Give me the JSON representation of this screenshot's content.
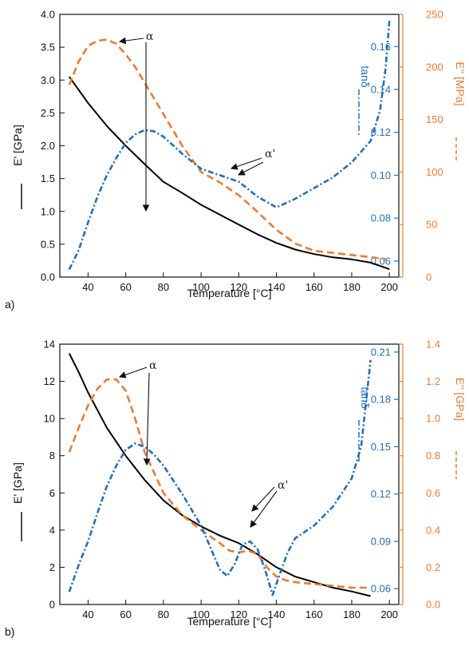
{
  "chart_data": [
    {
      "type": "line",
      "panel_label": "a)",
      "xlabel": "Temperature [°C]",
      "xlim": [
        25,
        205
      ],
      "xticks": [
        40,
        60,
        80,
        100,
        120,
        140,
        160,
        180,
        200
      ],
      "left_axis": {
        "label": "E' [GPa]",
        "ylim": [
          0,
          4.0
        ],
        "ticks": [
          "0.0",
          "0.5",
          "1.0",
          "1.5",
          "2.0",
          "2.5",
          "3.0",
          "3.5",
          "4.0"
        ]
      },
      "right_axis_orange": {
        "label": "E'' [MPa]",
        "ylim": [
          0,
          250
        ],
        "ticks": [
          "0",
          "50",
          "100",
          "150",
          "200",
          "250"
        ]
      },
      "right_axis_blue": {
        "label": "tanδ",
        "ylim": [
          0.0525,
          0.175
        ],
        "ticks": [
          "0.06",
          "0.08",
          "0.10",
          "0.12",
          "0.14",
          "0.16"
        ]
      },
      "annotations": [
        "α",
        "α'"
      ],
      "series": [
        {
          "axis": "left",
          "color": "#000000",
          "style": "solid",
          "x": [
            30,
            40,
            50,
            60,
            70,
            80,
            90,
            100,
            110,
            120,
            130,
            140,
            150,
            160,
            170,
            180,
            190,
            200
          ],
          "y": [
            3.05,
            2.65,
            2.3,
            2.0,
            1.72,
            1.45,
            1.28,
            1.1,
            0.95,
            0.8,
            0.65,
            0.52,
            0.42,
            0.35,
            0.3,
            0.27,
            0.22,
            0.12
          ]
        },
        {
          "axis": "right_orange",
          "color": "#ee7b30",
          "style": "dashed",
          "x": [
            30,
            35,
            40,
            45,
            50,
            55,
            60,
            65,
            70,
            80,
            90,
            100,
            110,
            120,
            130,
            140,
            150,
            160,
            170,
            180,
            190,
            198
          ],
          "y": [
            183,
            205,
            220,
            225,
            226,
            222,
            212,
            200,
            185,
            155,
            125,
            100,
            90,
            78,
            62,
            45,
            32,
            25,
            23,
            21,
            19,
            17
          ]
        },
        {
          "axis": "right_blue",
          "color": "#1f6fc0",
          "style": "dashdot",
          "x": [
            30,
            35,
            40,
            45,
            50,
            55,
            60,
            65,
            70,
            75,
            80,
            85,
            90,
            100,
            110,
            120,
            130,
            140,
            150,
            160,
            170,
            180,
            190,
            195,
            198,
            200
          ],
          "y": [
            0.056,
            0.065,
            0.078,
            0.09,
            0.1,
            0.108,
            0.115,
            0.119,
            0.121,
            0.1205,
            0.118,
            0.114,
            0.11,
            0.103,
            0.1,
            0.097,
            0.09,
            0.085,
            0.089,
            0.094,
            0.099,
            0.106,
            0.116,
            0.13,
            0.15,
            0.172
          ]
        }
      ]
    },
    {
      "type": "line",
      "panel_label": "b)",
      "xlabel": "Temperature [°C]",
      "xlim": [
        25,
        205
      ],
      "xticks": [
        40,
        60,
        80,
        100,
        120,
        140,
        160,
        180,
        200
      ],
      "left_axis": {
        "label": "E' [GPa]",
        "ylim": [
          0,
          14
        ],
        "ticks": [
          "0",
          "2",
          "4",
          "6",
          "8",
          "10",
          "12",
          "14"
        ]
      },
      "right_axis_orange": {
        "label": "E'' [GPa]",
        "ylim": [
          0,
          1.4
        ],
        "ticks": [
          "0.0",
          "0.2",
          "0.4",
          "0.6",
          "0.8",
          "1.0",
          "1.2",
          "1.4"
        ]
      },
      "right_axis_blue": {
        "label": "tanδ",
        "ylim": [
          0.05,
          0.215
        ],
        "ticks": [
          "0.06",
          "0.09",
          "0.12",
          "0.15",
          "0.18",
          "0.21"
        ]
      },
      "annotations": [
        "α",
        "α'"
      ],
      "series": [
        {
          "axis": "left",
          "color": "#000000",
          "style": "solid",
          "x": [
            30,
            35,
            40,
            50,
            60,
            70,
            80,
            90,
            100,
            110,
            120,
            130,
            140,
            150,
            160,
            170,
            180,
            190
          ],
          "y": [
            13.5,
            12.5,
            11.4,
            9.5,
            8.0,
            6.7,
            5.6,
            4.8,
            4.2,
            3.7,
            3.3,
            2.7,
            2.0,
            1.5,
            1.2,
            0.9,
            0.7,
            0.45
          ]
        },
        {
          "axis": "right_orange",
          "color": "#ee7b30",
          "style": "dashed",
          "x": [
            30,
            35,
            40,
            45,
            50,
            55,
            60,
            65,
            70,
            80,
            90,
            100,
            110,
            115,
            120,
            125,
            130,
            135,
            140,
            145,
            150,
            160,
            170,
            180,
            190
          ],
          "y": [
            0.82,
            0.95,
            1.07,
            1.16,
            1.21,
            1.21,
            1.15,
            1.0,
            0.82,
            0.6,
            0.48,
            0.4,
            0.33,
            0.29,
            0.28,
            0.29,
            0.27,
            0.2,
            0.15,
            0.13,
            0.12,
            0.11,
            0.1,
            0.09,
            0.09
          ]
        },
        {
          "axis": "right_blue",
          "color": "#1f6fc0",
          "style": "dashdot",
          "x": [
            30,
            35,
            40,
            45,
            50,
            55,
            60,
            65,
            70,
            75,
            80,
            90,
            100,
            110,
            114,
            118,
            122,
            126,
            130,
            134,
            138,
            142,
            146,
            150,
            160,
            170,
            180,
            185,
            190
          ],
          "y": [
            0.058,
            0.075,
            0.09,
            0.108,
            0.125,
            0.138,
            0.148,
            0.152,
            0.15,
            0.145,
            0.138,
            0.12,
            0.1,
            0.072,
            0.068,
            0.076,
            0.088,
            0.09,
            0.085,
            0.072,
            0.056,
            0.07,
            0.083,
            0.092,
            0.1,
            0.112,
            0.13,
            0.15,
            0.205
          ]
        }
      ]
    }
  ]
}
